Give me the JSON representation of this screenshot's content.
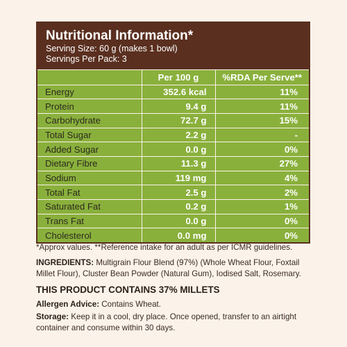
{
  "header": {
    "title": "Nutritional Information*",
    "serving_size": "Serving Size: 60 g (makes 1 bowl)",
    "servings_per_pack": "Servings Per Pack: 3"
  },
  "table": {
    "columns": [
      "",
      "Per 100 g",
      "%RDA Per Serve**"
    ],
    "rows": [
      {
        "name": "Energy",
        "per100": "352.6 kcal",
        "rda": "11%"
      },
      {
        "name": "Protein",
        "per100": "9.4 g",
        "rda": "11%"
      },
      {
        "name": "Carbohydrate",
        "per100": "72.7 g",
        "rda": "15%"
      },
      {
        "name": "Total Sugar",
        "per100": "2.2 g",
        "rda": "-"
      },
      {
        "name": "Added Sugar",
        "per100": "0.0 g",
        "rda": "0%"
      },
      {
        "name": "Dietary Fibre",
        "per100": "11.3 g",
        "rda": "27%"
      },
      {
        "name": "Sodium",
        "per100": "119 mg",
        "rda": "4%"
      },
      {
        "name": "Total Fat",
        "per100": "2.5 g",
        "rda": "2%"
      },
      {
        "name": "Saturated Fat",
        "per100": "0.2 g",
        "rda": "1%"
      },
      {
        "name": "Trans Fat",
        "per100": "0.0 g",
        "rda": "0%"
      },
      {
        "name": "Cholesterol",
        "per100": "0.0 mg",
        "rda": "0%"
      }
    ]
  },
  "footnote": "*Approx values. **Reference intake for an adult as per ICMR guidelines.",
  "ingredients": {
    "label": "INGREDIENTS:",
    "text": "Multigrain Flour Blend (97%) (Whole Wheat Flour, Foxtail Millet Flour), Cluster Bean Powder (Natural Gum), Iodised Salt, Rosemary."
  },
  "millet_claim": "THIS PRODUCT CONTAINS 37% MILLETS",
  "allergen": {
    "label": "Allergen Advice:",
    "text": "Contains Wheat."
  },
  "storage": {
    "label": "Storage:",
    "text": "Keep it in a cool, dry place. Once opened, transfer to an airtight container and consume within 30 days."
  },
  "colors": {
    "header_bg": "#5a2f1f",
    "table_bg": "#8ab03c",
    "page_bg": "#fbf3ea"
  }
}
